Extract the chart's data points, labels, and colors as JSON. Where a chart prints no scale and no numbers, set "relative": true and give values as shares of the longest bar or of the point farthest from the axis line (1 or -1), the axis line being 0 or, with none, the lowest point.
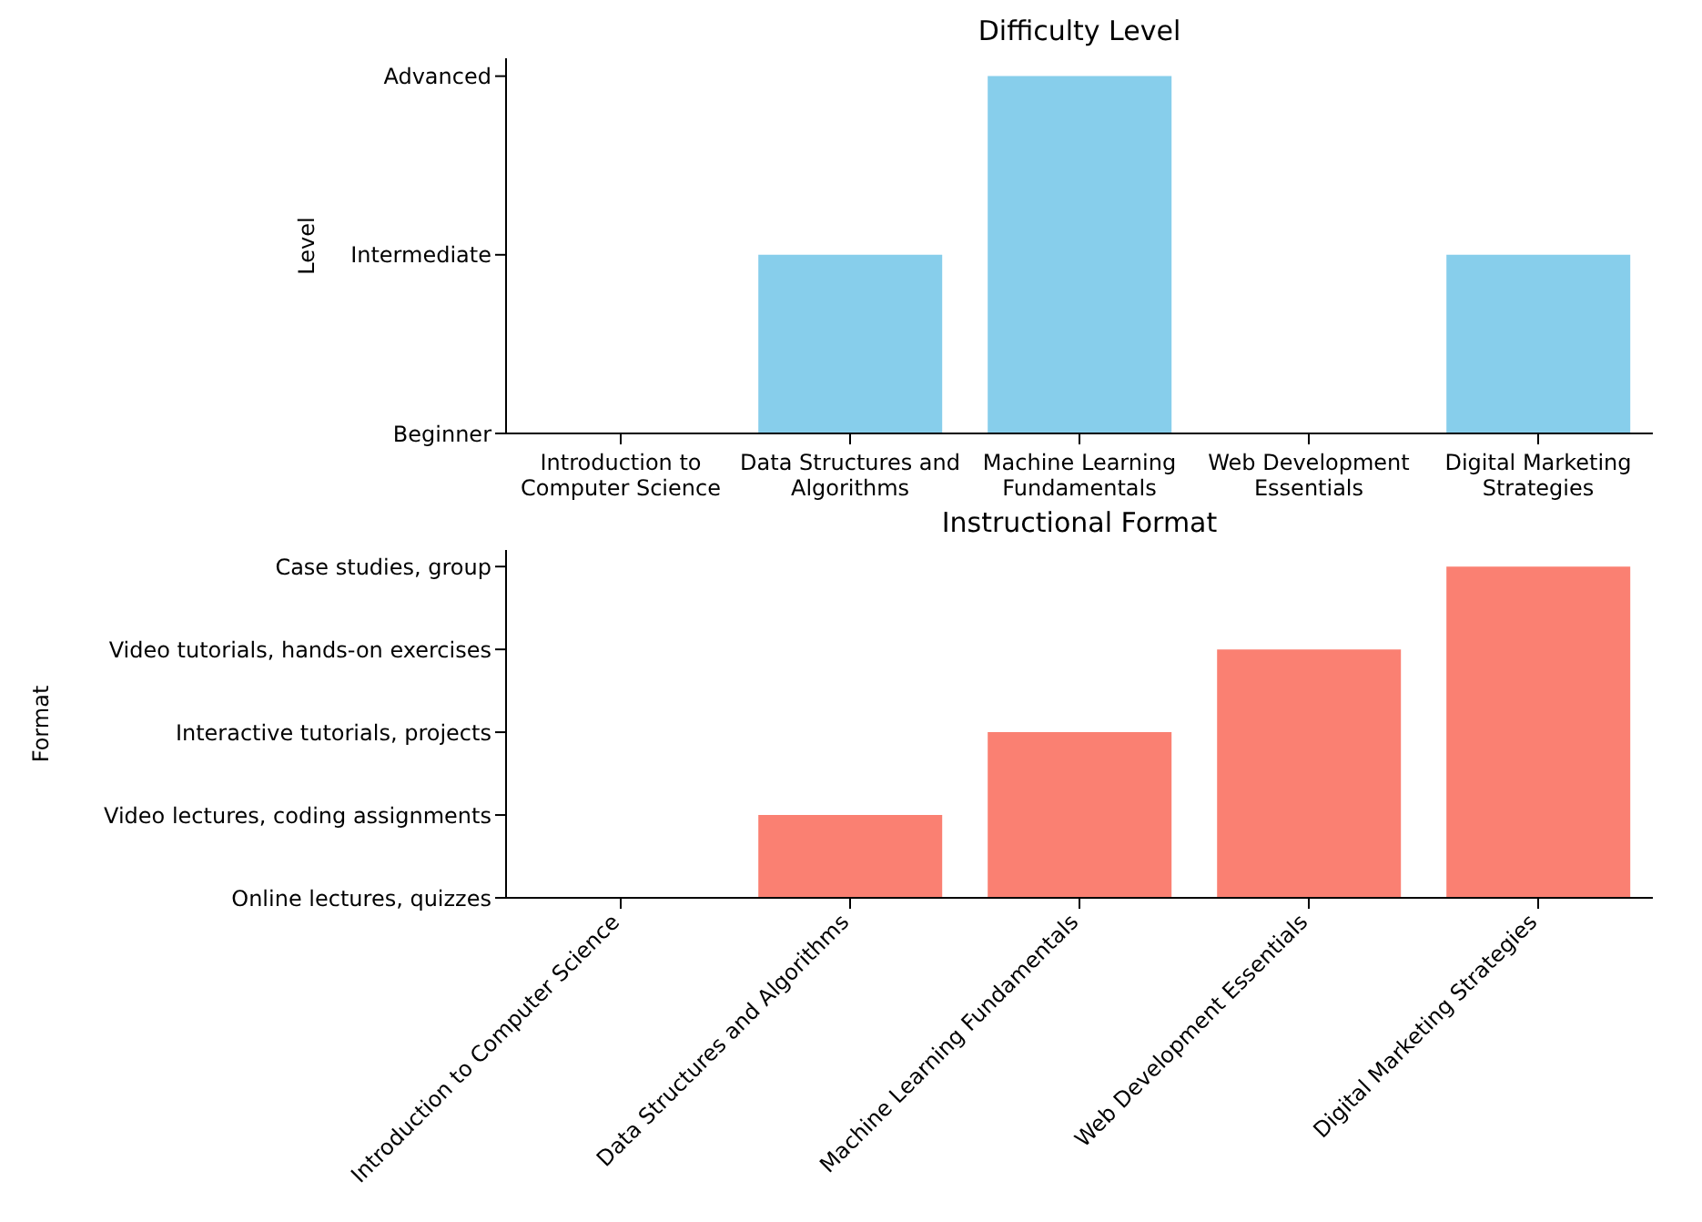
{
  "chart_data": [
    {
      "type": "bar",
      "title": "Difficulty Level",
      "ylabel": "Level",
      "categories": [
        "Introduction to Computer Science",
        "Data Structures and Algorithms",
        "Machine Learning Fundamentals",
        "Web Development Essentials",
        "Digital Marketing Strategies"
      ],
      "values": [
        0,
        0.5,
        1,
        0,
        0.5
      ],
      "relative": true,
      "color": "#87ceeb",
      "y_categories": [
        "Advanced",
        "Intermediate",
        "Beginner"
      ],
      "grid": false,
      "legend": false
    },
    {
      "type": "bar",
      "title": "Instructional Format",
      "ylabel": "Format",
      "categories": [
        "Introduction to Computer Science",
        "Data Structures and Algorithms",
        "Machine Learning Fundamentals",
        "Web Development Essentials",
        "Digital Marketing Strategies"
      ],
      "values": [
        0,
        0.25,
        0.5,
        0.75,
        1
      ],
      "relative": true,
      "color": "#fa8072",
      "y_categories": [
        "Case studies, group",
        "Video tutorials, hands-on exercises",
        "Interactive tutorials, projects",
        "Video lectures, coding assignments",
        "Online lectures, quizzes"
      ],
      "grid": false,
      "legend": false
    }
  ]
}
